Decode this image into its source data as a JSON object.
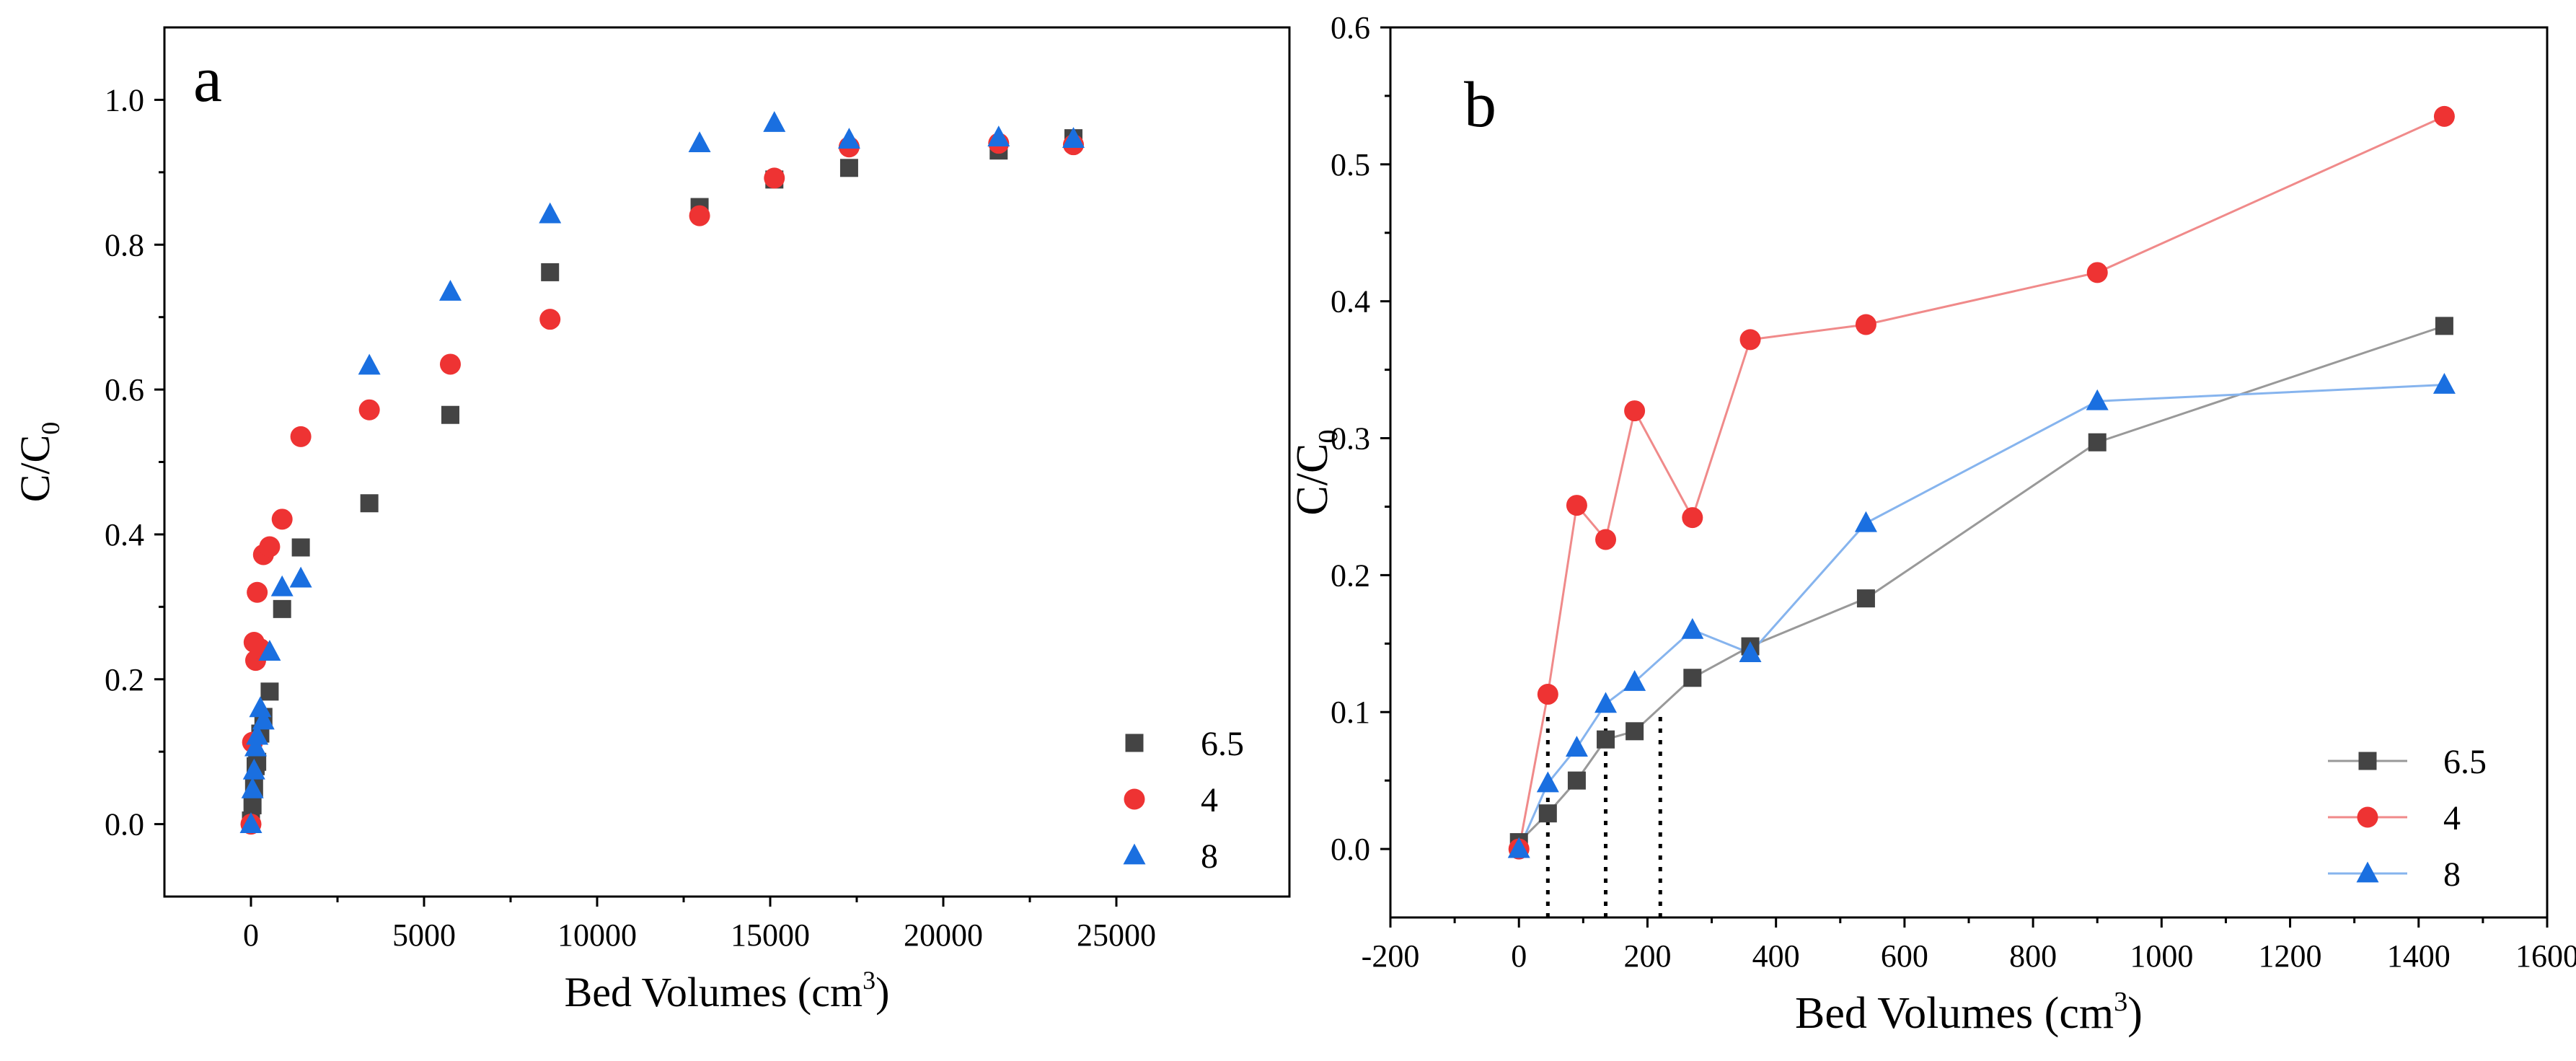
{
  "chart_data": [
    {
      "type": "scatter",
      "panel_label": "a",
      "xlabel": {
        "text": "Bed Volumes (cm",
        "sup": "3",
        "close": ")"
      },
      "ylabel": {
        "text": "C/C",
        "sub": "0"
      },
      "xlim": [
        -2500,
        30000
      ],
      "ylim": [
        -0.1,
        1.1
      ],
      "xticks": [
        0,
        5000,
        10000,
        15000,
        20000,
        25000
      ],
      "yticks": [
        0.0,
        0.2,
        0.4,
        0.6,
        0.8,
        1.0
      ],
      "xtick_labels": [
        "0",
        "5000",
        "10000",
        "15000",
        "20000",
        "25000"
      ],
      "ytick_labels": [
        "0.0",
        "0.2",
        "0.4",
        "0.6",
        "0.8",
        "1.0"
      ],
      "legend_position": "bottom-right",
      "series": [
        {
          "name": "6.5",
          "marker": "square",
          "color": "#444444",
          "points": [
            [
              0,
              0.005
            ],
            [
              45,
              0.026
            ],
            [
              90,
              0.05
            ],
            [
              135,
              0.08
            ],
            [
              180,
              0.086
            ],
            [
              270,
              0.125
            ],
            [
              360,
              0.148
            ],
            [
              540,
              0.183
            ],
            [
              900,
              0.297
            ],
            [
              1440,
              0.382
            ],
            [
              3420,
              0.443
            ],
            [
              5760,
              0.565
            ],
            [
              8640,
              0.762
            ],
            [
              12960,
              0.852
            ],
            [
              15120,
              0.89
            ],
            [
              17280,
              0.906
            ],
            [
              21600,
              0.93
            ],
            [
              23760,
              0.947
            ]
          ]
        },
        {
          "name": "4",
          "marker": "circle",
          "color": "#ee3333",
          "points": [
            [
              0,
              0.0
            ],
            [
              45,
              0.113
            ],
            [
              90,
              0.251
            ],
            [
              135,
              0.226
            ],
            [
              180,
              0.32
            ],
            [
              270,
              0.242
            ],
            [
              360,
              0.372
            ],
            [
              540,
              0.383
            ],
            [
              900,
              0.421
            ],
            [
              1440,
              0.535
            ],
            [
              3420,
              0.572
            ],
            [
              5760,
              0.635
            ],
            [
              8640,
              0.697
            ],
            [
              12960,
              0.84
            ],
            [
              15120,
              0.892
            ],
            [
              17280,
              0.935
            ],
            [
              21600,
              0.94
            ],
            [
              23760,
              0.938
            ]
          ]
        },
        {
          "name": "8",
          "marker": "triangle",
          "color": "#1a6fe0",
          "points": [
            [
              0,
              0.0
            ],
            [
              45,
              0.048
            ],
            [
              90,
              0.074
            ],
            [
              135,
              0.106
            ],
            [
              180,
              0.122
            ],
            [
              270,
              0.16
            ],
            [
              360,
              0.143
            ],
            [
              540,
              0.238
            ],
            [
              900,
              0.327
            ],
            [
              1440,
              0.339
            ],
            [
              3420,
              0.633
            ],
            [
              5760,
              0.735
            ],
            [
              8640,
              0.842
            ],
            [
              12960,
              0.94
            ],
            [
              15120,
              0.968
            ],
            [
              17280,
              0.945
            ],
            [
              21600,
              0.948
            ],
            [
              23760,
              0.946
            ]
          ]
        }
      ]
    },
    {
      "type": "line",
      "panel_label": "b",
      "xlabel": {
        "text": "Bed Volumes (cm",
        "sup": "3",
        "close": ")"
      },
      "ylabel": {
        "text": "C/C",
        "sub": "0"
      },
      "xlim": [
        -200,
        1600
      ],
      "ylim": [
        -0.05,
        0.6
      ],
      "xticks": [
        -200,
        0,
        200,
        400,
        600,
        800,
        1000,
        1200,
        1400,
        1600
      ],
      "yticks": [
        0.0,
        0.1,
        0.2,
        0.3,
        0.4,
        0.5,
        0.6
      ],
      "xtick_labels": [
        "-200",
        "0",
        "200",
        "400",
        "600",
        "800",
        "1000",
        "1200",
        "1400",
        "1600"
      ],
      "ytick_labels": [
        "0.0",
        "0.1",
        "0.2",
        "0.3",
        "0.4",
        "0.5",
        "0.6"
      ],
      "legend_position": "bottom-right",
      "annotations": [
        {
          "type": "dotted-vertical",
          "x": 45,
          "y_top": 0.1
        },
        {
          "type": "dotted-vertical",
          "x": 135,
          "y_top": 0.1
        },
        {
          "type": "dotted-vertical",
          "x": 220,
          "y_top": 0.1
        }
      ],
      "series": [
        {
          "name": "6.5",
          "marker": "square",
          "color": "#444444",
          "line_color": "#999999",
          "points": [
            [
              0,
              0.005
            ],
            [
              45,
              0.026
            ],
            [
              90,
              0.05
            ],
            [
              135,
              0.08
            ],
            [
              180,
              0.086
            ],
            [
              270,
              0.125
            ],
            [
              360,
              0.148
            ],
            [
              540,
              0.183
            ],
            [
              900,
              0.297
            ],
            [
              1440,
              0.382
            ]
          ]
        },
        {
          "name": "4",
          "marker": "circle",
          "color": "#ee3333",
          "line_color": "#f08a8a",
          "points": [
            [
              0,
              0.0
            ],
            [
              45,
              0.113
            ],
            [
              90,
              0.251
            ],
            [
              135,
              0.226
            ],
            [
              180,
              0.32
            ],
            [
              270,
              0.242
            ],
            [
              360,
              0.372
            ],
            [
              540,
              0.383
            ],
            [
              900,
              0.421
            ],
            [
              1440,
              0.535
            ]
          ]
        },
        {
          "name": "8",
          "marker": "triangle",
          "color": "#1a6fe0",
          "line_color": "#86b4ee",
          "points": [
            [
              0,
              0.0
            ],
            [
              45,
              0.048
            ],
            [
              90,
              0.074
            ],
            [
              135,
              0.106
            ],
            [
              180,
              0.122
            ],
            [
              270,
              0.16
            ],
            [
              360,
              0.143
            ],
            [
              540,
              0.238
            ],
            [
              900,
              0.327
            ],
            [
              1440,
              0.339
            ]
          ]
        }
      ]
    }
  ]
}
